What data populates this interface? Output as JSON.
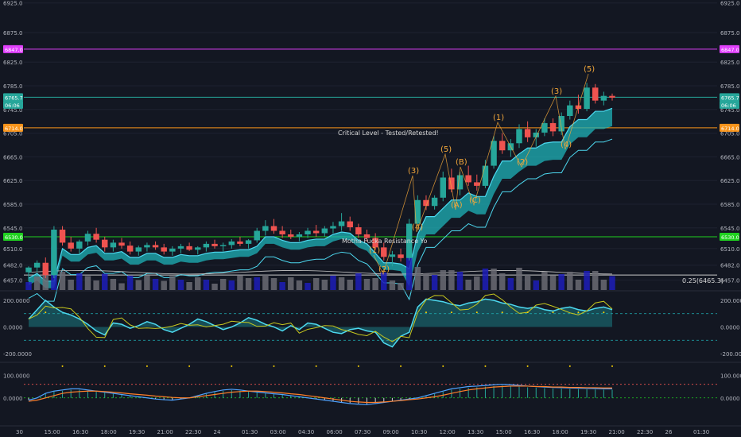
{
  "colors": {
    "background": "#131722",
    "grid": "#1e2230",
    "up": "#26a69a",
    "down": "#ef5350",
    "cloud": "#1fb3b8",
    "cyan_line": "#4dd9f0",
    "magenta": "#e040fb",
    "orange": "#f7931a",
    "green": "#1fd11f",
    "wave": "#f4a83a",
    "volume_blue": "#1d1db8",
    "volume_gray": "#6b6b73",
    "osc_yellow": "#c8c81e",
    "macd_fast": "#4fa3ff",
    "macd_slow": "#ff7f2a"
  },
  "chart_data": [
    {
      "type": "line",
      "panel": "price",
      "description": "Candlestick price chart with Ichimoku-style cloud and Elliott wave labels",
      "ylim": [
        6440,
        6930
      ],
      "y_ticks_left": [
        "6925.0",
        "6875.0",
        "6825.0",
        "6785.0",
        "6745.0",
        "6705.0",
        "6665.0",
        "6625.0",
        "6585.0",
        "6545.0",
        "6510.0",
        "6482.0",
        "6457.0"
      ],
      "y_ticks_right": [
        "6925.0",
        "6875.0",
        "6825.0",
        "6785.0",
        "6745.0",
        "6705.0",
        "6665.0",
        "6625.0",
        "6585.0",
        "6545.0",
        "6510.0",
        "6482.0",
        "6457.0"
      ],
      "price_badges": [
        {
          "label": "6847.0",
          "value": 6847.0,
          "color": "#e040fb"
        },
        {
          "label": "6765.7",
          "value": 6765.7,
          "color": "#26a69a"
        },
        {
          "label": "06:06",
          "value": 6753.0,
          "color": "#26a69a"
        },
        {
          "label": "6714.0",
          "value": 6714.0,
          "color": "#f7931a"
        },
        {
          "label": "6530.0",
          "value": 6530.0,
          "color": "#1fd11f"
        }
      ],
      "horizontal_lines": [
        {
          "value": 6847.0,
          "color": "#e040fb"
        },
        {
          "value": 6765.7,
          "color": "#26a69a"
        },
        {
          "value": 6714.0,
          "color": "#f7931a"
        },
        {
          "value": 6530.0,
          "color": "#1fd11f"
        },
        {
          "value": 6465.3,
          "color": "#c8c8c8"
        }
      ],
      "annotations": {
        "critical_level": "Critical Level - Tested/Retested!",
        "mother_fucker": "Motha Fucka Resistance Yo",
        "fib": "0.25(6465.3)"
      },
      "wave_labels": [
        {
          "label": "(1)",
          "x": 470,
          "y": 318
        },
        {
          "label": "(2)",
          "x": 482,
          "y": 342
        },
        {
          "label": "(3)",
          "x": 519,
          "y": 218
        },
        {
          "label": "(4)",
          "x": 524,
          "y": 289
        },
        {
          "label": "(5)",
          "x": 560,
          "y": 191
        },
        {
          "label": "(A)",
          "x": 573,
          "y": 261
        },
        {
          "label": "(B)",
          "x": 579,
          "y": 207
        },
        {
          "label": "(C)",
          "x": 596,
          "y": 255
        },
        {
          "label": "(1)",
          "x": 626,
          "y": 151
        },
        {
          "label": "(2)",
          "x": 656,
          "y": 207
        },
        {
          "label": "(3)",
          "x": 699,
          "y": 118
        },
        {
          "label": "(4)",
          "x": 711,
          "y": 185
        },
        {
          "label": "(5)",
          "x": 740,
          "y": 90
        }
      ],
      "candles": [
        [
          6470,
          6480,
          6455,
          6478
        ],
        [
          6478,
          6490,
          6470,
          6486
        ],
        [
          6486,
          6495,
          6460,
          6465
        ],
        [
          6465,
          6548,
          6460,
          6542
        ],
        [
          6542,
          6548,
          6515,
          6520
        ],
        [
          6520,
          6530,
          6505,
          6510
        ],
        [
          6510,
          6525,
          6500,
          6522
        ],
        [
          6522,
          6540,
          6515,
          6535
        ],
        [
          6535,
          6545,
          6520,
          6525
        ],
        [
          6525,
          6530,
          6505,
          6512
        ],
        [
          6512,
          6525,
          6505,
          6520
        ],
        [
          6520,
          6528,
          6510,
          6515
        ],
        [
          6515,
          6522,
          6500,
          6505
        ],
        [
          6505,
          6515,
          6498,
          6512
        ],
        [
          6512,
          6520,
          6505,
          6516
        ],
        [
          6516,
          6522,
          6508,
          6512
        ],
        [
          6512,
          6518,
          6500,
          6505
        ],
        [
          6505,
          6514,
          6498,
          6510
        ],
        [
          6510,
          6518,
          6502,
          6514
        ],
        [
          6514,
          6520,
          6506,
          6508
        ],
        [
          6508,
          6514,
          6500,
          6512
        ],
        [
          6512,
          6522,
          6505,
          6518
        ],
        [
          6518,
          6525,
          6510,
          6514
        ],
        [
          6514,
          6520,
          6505,
          6516
        ],
        [
          6516,
          6526,
          6510,
          6522
        ],
        [
          6522,
          6530,
          6514,
          6518
        ],
        [
          6518,
          6526,
          6510,
          6524
        ],
        [
          6524,
          6545,
          6520,
          6540
        ],
        [
          6540,
          6558,
          6532,
          6548
        ],
        [
          6548,
          6560,
          6535,
          6540
        ],
        [
          6540,
          6548,
          6528,
          6534
        ],
        [
          6534,
          6542,
          6526,
          6530
        ],
        [
          6530,
          6538,
          6522,
          6534
        ],
        [
          6534,
          6545,
          6528,
          6540
        ],
        [
          6540,
          6550,
          6530,
          6536
        ],
        [
          6536,
          6548,
          6530,
          6544
        ],
        [
          6544,
          6555,
          6536,
          6548
        ],
        [
          6548,
          6570,
          6540,
          6556
        ],
        [
          6556,
          6564,
          6540,
          6546
        ],
        [
          6546,
          6552,
          6528,
          6534
        ],
        [
          6534,
          6542,
          6522,
          6528
        ],
        [
          6528,
          6536,
          6508,
          6512
        ],
        [
          6512,
          6520,
          6490,
          6496
        ],
        [
          6496,
          6506,
          6480,
          6500
        ],
        [
          6500,
          6510,
          6488,
          6494
        ],
        [
          6494,
          6560,
          6490,
          6552
        ],
        [
          6552,
          6600,
          6548,
          6592
        ],
        [
          6592,
          6600,
          6575,
          6582
        ],
        [
          6582,
          6600,
          6576,
          6596
        ],
        [
          6596,
          6640,
          6590,
          6630
        ],
        [
          6630,
          6645,
          6605,
          6610
        ],
        [
          6610,
          6640,
          6600,
          6634
        ],
        [
          6634,
          6650,
          6616,
          6622
        ],
        [
          6622,
          6635,
          6608,
          6616
        ],
        [
          6616,
          6660,
          6612,
          6650
        ],
        [
          6650,
          6700,
          6645,
          6692
        ],
        [
          6692,
          6705,
          6670,
          6676
        ],
        [
          6676,
          6695,
          6665,
          6688
        ],
        [
          6688,
          6720,
          6680,
          6712
        ],
        [
          6712,
          6725,
          6690,
          6698
        ],
        [
          6698,
          6712,
          6682,
          6706
        ],
        [
          6706,
          6730,
          6700,
          6722
        ],
        [
          6722,
          6730,
          6700,
          6708
        ],
        [
          6708,
          6740,
          6702,
          6734
        ],
        [
          6734,
          6760,
          6728,
          6752
        ],
        [
          6752,
          6770,
          6738,
          6746
        ],
        [
          6746,
          6790,
          6742,
          6782
        ],
        [
          6782,
          6788,
          6755,
          6760
        ],
        [
          6760,
          6775,
          6752,
          6768
        ],
        [
          6768,
          6772,
          6760,
          6765
        ]
      ]
    },
    {
      "type": "line",
      "panel": "oscillator",
      "ylim": [
        -260,
        260
      ],
      "y_ticks_left": [
        "200.0000",
        "0.0000",
        "-200.0000"
      ],
      "y_ticks_right": [
        "200.0000",
        "0.0000",
        "-200.0000"
      ],
      "levels": [
        100,
        -100
      ],
      "series": [
        {
          "values": [
            60,
            130,
            200,
            150,
            110,
            90,
            60,
            20,
            -30,
            -60,
            30,
            20,
            -10,
            10,
            40,
            20,
            -20,
            -40,
            -10,
            20,
            60,
            40,
            10,
            -20,
            0,
            30,
            70,
            50,
            20,
            0,
            -30,
            10,
            -20,
            30,
            20,
            -10,
            -40,
            -50,
            -20,
            -10,
            -30,
            -40,
            -120,
            -150,
            -70,
            -40,
            150,
            210,
            200,
            190,
            170,
            160,
            180,
            190,
            210,
            200,
            180,
            170,
            150,
            140,
            150,
            130,
            120,
            140,
            150,
            130,
            120,
            140,
            150,
            130
          ]
        }
      ]
    },
    {
      "type": "line",
      "panel": "macd",
      "ylim": [
        -120,
        150
      ],
      "y_ticks_left": [
        "100.0000",
        "0.0000"
      ],
      "y_ticks_right": [
        "100.0000",
        "0.0000"
      ],
      "levels": [
        60,
        0
      ],
      "series": [
        {
          "values": [
            -10,
            0,
            20,
            30,
            35,
            40,
            40,
            35,
            30,
            25,
            20,
            15,
            10,
            5,
            0,
            -5,
            -8,
            -10,
            -5,
            0,
            10,
            20,
            28,
            35,
            38,
            35,
            30,
            26,
            22,
            18,
            15,
            10,
            5,
            0,
            -5,
            -10,
            -15,
            -20,
            -25,
            -28,
            -30,
            -25,
            -20,
            -15,
            -10,
            -5,
            0,
            10,
            20,
            30,
            40,
            45,
            50,
            52,
            55,
            58,
            60,
            58,
            55,
            52,
            50,
            48,
            46,
            45,
            44,
            43,
            42,
            41,
            40,
            40
          ]
        },
        {
          "values": [
            -15,
            -10,
            0,
            10,
            20,
            25,
            28,
            30,
            30,
            28,
            25,
            22,
            18,
            15,
            12,
            8,
            5,
            2,
            0,
            0,
            5,
            10,
            15,
            20,
            25,
            28,
            30,
            30,
            28,
            25,
            22,
            18,
            15,
            10,
            5,
            0,
            -5,
            -10,
            -15,
            -18,
            -20,
            -20,
            -18,
            -15,
            -12,
            -8,
            -5,
            0,
            5,
            12,
            20,
            28,
            35,
            40,
            44,
            48,
            50,
            52,
            52,
            52,
            50,
            50,
            48,
            48,
            46,
            46,
            45,
            45,
            44,
            44
          ]
        }
      ]
    }
  ],
  "x_axis_labels": [
    "30",
    "15:00",
    "16:30",
    "18:00",
    "19:30",
    "21:00",
    "22:30",
    "24",
    "01:30",
    "03:00",
    "04:30",
    "06:00",
    "07:30",
    "09:00",
    "10:30",
    "12:00",
    "13:30",
    "15:00",
    "16:30",
    "18:00",
    "19:30",
    "21:00",
    "22:30",
    "26",
    "01:30"
  ]
}
